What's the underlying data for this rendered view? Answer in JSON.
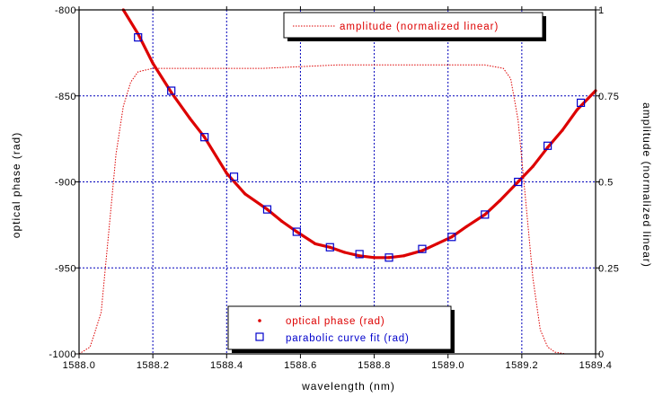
{
  "chart_data": {
    "type": "line",
    "xlabel": "wavelength (nm)",
    "ylabel": "optical phase (rad)",
    "y2label": "amplitude (normalized linear)",
    "xlim": [
      1588.0,
      1589.4
    ],
    "ylim": [
      -1000,
      -800
    ],
    "y2lim": [
      0,
      1
    ],
    "x_ticks": [
      "1588.0",
      "1588.2",
      "1588.4",
      "1588.6",
      "1588.8",
      "1589.0",
      "1589.2",
      "1589.4"
    ],
    "y_ticks": [
      "-1000",
      "-950",
      "-900",
      "-850",
      "-800"
    ],
    "y2_ticks": [
      "0",
      "0.25",
      "0.5",
      "0.75",
      "1"
    ],
    "grid": true,
    "legend_top": "top-center",
    "legend_bottom": "bottom-center",
    "colors": {
      "phase": "#dd0000",
      "amplitude": "#dd0000",
      "fit": "#0000cc",
      "grid": "#0000bb",
      "axis": "#000000"
    },
    "series": [
      {
        "name": "amplitude (normalized linear)",
        "style": "dotted",
        "axis": "right",
        "x": [
          1588.0,
          1588.03,
          1588.06,
          1588.08,
          1588.1,
          1588.12,
          1588.14,
          1588.16,
          1588.2,
          1588.3,
          1588.4,
          1588.5,
          1588.6,
          1588.7,
          1588.8,
          1588.9,
          1589.0,
          1589.1,
          1589.15,
          1589.17,
          1589.19,
          1589.21,
          1589.23,
          1589.25,
          1589.27,
          1589.29,
          1589.32
        ],
        "y": [
          0.0,
          0.02,
          0.12,
          0.35,
          0.58,
          0.72,
          0.79,
          0.82,
          0.83,
          0.83,
          0.83,
          0.83,
          0.835,
          0.84,
          0.84,
          0.84,
          0.84,
          0.84,
          0.83,
          0.8,
          0.68,
          0.45,
          0.22,
          0.07,
          0.02,
          0.005,
          0.0
        ]
      },
      {
        "name": "optical phase (rad)",
        "style": "solid-thick",
        "axis": "left",
        "x": [
          1588.12,
          1588.16,
          1588.2,
          1588.25,
          1588.3,
          1588.34,
          1588.4,
          1588.45,
          1588.51,
          1588.55,
          1588.59,
          1588.64,
          1588.68,
          1588.72,
          1588.76,
          1588.8,
          1588.84,
          1588.88,
          1588.93,
          1588.97,
          1589.01,
          1589.05,
          1589.1,
          1589.14,
          1589.19,
          1589.23,
          1589.27,
          1589.31,
          1589.35,
          1589.4
        ],
        "y": [
          -800,
          -814,
          -831,
          -848,
          -863,
          -874,
          -895,
          -907,
          -916,
          -923,
          -929,
          -936,
          -938,
          -941,
          -943,
          -944,
          -944,
          -943,
          -940,
          -936,
          -932,
          -926,
          -919,
          -911,
          -900,
          -891,
          -880,
          -870,
          -858,
          -847
        ]
      },
      {
        "name": "parabolic curve fit (rad)",
        "style": "open-square-markers",
        "axis": "left",
        "x": [
          1588.16,
          1588.25,
          1588.34,
          1588.42,
          1588.51,
          1588.59,
          1588.68,
          1588.76,
          1588.84,
          1588.93,
          1589.01,
          1589.1,
          1589.19,
          1589.27,
          1589.36
        ],
        "y": [
          -816,
          -847,
          -874,
          -897,
          -916,
          -929,
          -938,
          -942,
          -944,
          -939,
          -932,
          -919,
          -900,
          -879,
          -854
        ]
      }
    ]
  }
}
